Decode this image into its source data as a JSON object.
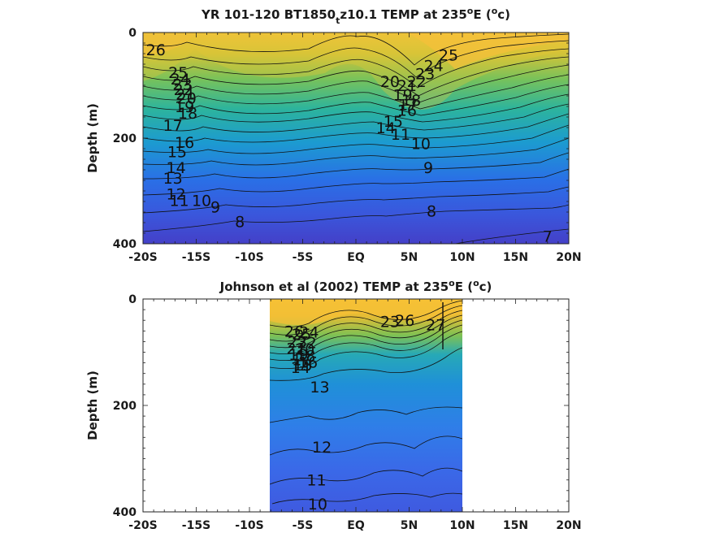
{
  "chart_data": [
    {
      "type": "contour",
      "title": "YR 101-120 BT1850",
      "title_subscript": "t",
      "title_rest": "z10.1 TEMP at 235",
      "title_unit_suffix": "E (",
      "title_unit_sup": "o",
      "title_unit_end": "c)",
      "ylabel": "Depth (m)",
      "x_ticks": [
        "-20S",
        "-15S",
        "-10S",
        "-5S",
        "EQ",
        "5N",
        "10N",
        "15N",
        "20N"
      ],
      "x_values": [
        -20,
        -15,
        -10,
        -5,
        0,
        5,
        10,
        15,
        20
      ],
      "xlim": [
        -20,
        20
      ],
      "y_ticks": [
        "0",
        "200",
        "400"
      ],
      "y_values": [
        0,
        200,
        400
      ],
      "ylim": [
        0,
        400
      ],
      "y_reversed": true,
      "data_extent": [
        -20,
        20
      ],
      "contour_labels": [
        {
          "text": "26",
          "x": -18.8,
          "y": 32
        },
        {
          "text": "25",
          "x": -16.7,
          "y": 75
        },
        {
          "text": "24",
          "x": -16.5,
          "y": 88
        },
        {
          "text": "23",
          "x": -16.3,
          "y": 98
        },
        {
          "text": "22",
          "x": -16.2,
          "y": 108
        },
        {
          "text": "21",
          "x": -16.0,
          "y": 116
        },
        {
          "text": "20",
          "x": -15.9,
          "y": 124
        },
        {
          "text": "19",
          "x": -16.1,
          "y": 140
        },
        {
          "text": "18",
          "x": -15.8,
          "y": 152
        },
        {
          "text": "17",
          "x": -17.2,
          "y": 175
        },
        {
          "text": "16",
          "x": -16.1,
          "y": 208
        },
        {
          "text": "15",
          "x": -16.8,
          "y": 225
        },
        {
          "text": "14",
          "x": -16.9,
          "y": 255
        },
        {
          "text": "13",
          "x": -17.2,
          "y": 275
        },
        {
          "text": "12",
          "x": -16.9,
          "y": 305
        },
        {
          "text": "11",
          "x": -16.6,
          "y": 318
        },
        {
          "text": "10",
          "x": -14.5,
          "y": 318
        },
        {
          "text": "9",
          "x": -13.2,
          "y": 330
        },
        {
          "text": "8",
          "x": -10.9,
          "y": 358
        },
        {
          "text": "25",
          "x": 8.7,
          "y": 42
        },
        {
          "text": "24",
          "x": 7.3,
          "y": 62
        },
        {
          "text": "23",
          "x": 6.5,
          "y": 78
        },
        {
          "text": "22",
          "x": 5.7,
          "y": 92
        },
        {
          "text": "21",
          "x": 4.8,
          "y": 100
        },
        {
          "text": "20",
          "x": 3.2,
          "y": 92
        },
        {
          "text": "19",
          "x": 4.4,
          "y": 118
        },
        {
          "text": "18",
          "x": 5.2,
          "y": 128
        },
        {
          "text": "17",
          "x": 4.9,
          "y": 136
        },
        {
          "text": "16",
          "x": 4.8,
          "y": 147
        },
        {
          "text": "15",
          "x": 3.5,
          "y": 168
        },
        {
          "text": "14",
          "x": 2.8,
          "y": 180
        },
        {
          "text": "11",
          "x": 4.2,
          "y": 192
        },
        {
          "text": "10",
          "x": 6.1,
          "y": 210
        },
        {
          "text": "9",
          "x": 6.8,
          "y": 255
        },
        {
          "text": "8",
          "x": 7.1,
          "y": 338
        },
        {
          "text": "7",
          "x": 18.0,
          "y": 385
        }
      ]
    },
    {
      "type": "contour",
      "title": "Johnson et al (2002) TEMP at 235",
      "title_unit_suffix": "E (",
      "title_unit_sup": "o",
      "title_unit_end": "c)",
      "ylabel": "Depth (m)",
      "x_ticks": [
        "-20S",
        "-15S",
        "-10S",
        "-5S",
        "EQ",
        "5N",
        "10N",
        "15N",
        "20N"
      ],
      "x_values": [
        -20,
        -15,
        -10,
        -5,
        0,
        5,
        10,
        15,
        20
      ],
      "xlim": [
        -20,
        20
      ],
      "y_ticks": [
        "0",
        "200",
        "400"
      ],
      "y_values": [
        0,
        200,
        400
      ],
      "ylim": [
        0,
        400
      ],
      "y_reversed": true,
      "data_extent": [
        -8,
        10
      ],
      "contour_labels": [
        {
          "text": "26",
          "x": -5.8,
          "y": 60
        },
        {
          "text": "25",
          "x": -5.1,
          "y": 66
        },
        {
          "text": "24",
          "x": -4.4,
          "y": 62
        },
        {
          "text": "23",
          "x": -5.5,
          "y": 80
        },
        {
          "text": "22",
          "x": -4.6,
          "y": 82
        },
        {
          "text": "21",
          "x": -5.6,
          "y": 92
        },
        {
          "text": "20",
          "x": -4.8,
          "y": 94
        },
        {
          "text": "19",
          "x": -5.4,
          "y": 104
        },
        {
          "text": "18",
          "x": -4.7,
          "y": 106
        },
        {
          "text": "17",
          "x": -5.1,
          "y": 114
        },
        {
          "text": "16",
          "x": -4.5,
          "y": 118
        },
        {
          "text": "15",
          "x": -5.0,
          "y": 124
        },
        {
          "text": "14",
          "x": -5.2,
          "y": 128
        },
        {
          "text": "13",
          "x": -3.4,
          "y": 165
        },
        {
          "text": "23",
          "x": 3.2,
          "y": 42
        },
        {
          "text": "26",
          "x": 4.6,
          "y": 40
        },
        {
          "text": "27",
          "x": 7.5,
          "y": 48
        },
        {
          "text": "12",
          "x": -3.2,
          "y": 278
        },
        {
          "text": "11",
          "x": -3.7,
          "y": 340
        },
        {
          "text": "10",
          "x": -3.6,
          "y": 385
        }
      ]
    }
  ]
}
